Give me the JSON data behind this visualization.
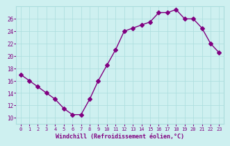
{
  "x": [
    0,
    1,
    2,
    3,
    4,
    5,
    6,
    7,
    8,
    9,
    10,
    11,
    12,
    13,
    14,
    15,
    16,
    17,
    18,
    19,
    20,
    21,
    22,
    23
  ],
  "y": [
    17,
    16,
    15,
    14,
    13,
    11.5,
    10.5,
    10.5,
    13,
    16,
    18.5,
    21,
    24,
    24.5,
    25,
    25.5,
    27,
    27,
    27.5,
    26,
    26,
    24.5,
    22,
    20.5
  ],
  "line_color": "#800080",
  "marker": "D",
  "marker_size": 3,
  "bg_color": "#cef0f0",
  "grid_color": "#aadddd",
  "tick_color": "#800080",
  "label_color": "#800080",
  "xlabel": "Windchill (Refroidissement éolien,°C)",
  "xlim": [
    -0.5,
    23.5
  ],
  "ylim": [
    9,
    28
  ],
  "yticks": [
    10,
    12,
    14,
    16,
    18,
    20,
    22,
    24,
    26
  ],
  "xticks": [
    0,
    1,
    2,
    3,
    4,
    5,
    6,
    7,
    8,
    9,
    10,
    11,
    12,
    13,
    14,
    15,
    16,
    17,
    18,
    19,
    20,
    21,
    22,
    23
  ]
}
